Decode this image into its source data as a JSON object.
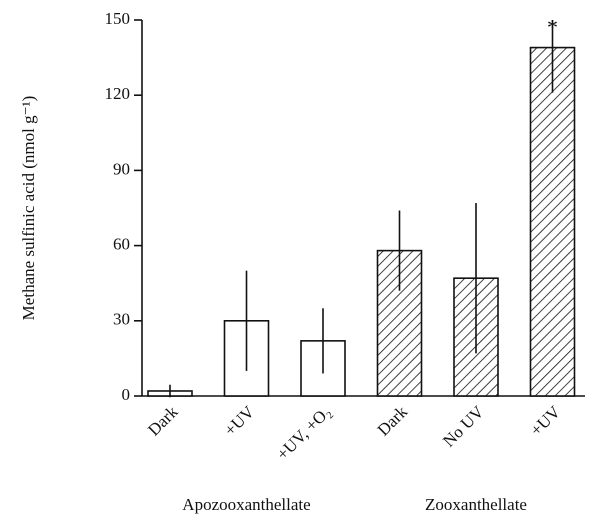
{
  "chart_data": {
    "type": "bar",
    "ylabel": "Methane sulfinic acid (nmol g⁻¹)",
    "ylim": [
      0,
      150
    ],
    "yticks": [
      0,
      30,
      60,
      90,
      120,
      150
    ],
    "series": [
      {
        "name": "Apozooxanthellate",
        "hatch": false,
        "categories": [
          "Dark",
          "+UV",
          "+UV, +O₂"
        ],
        "values": [
          2,
          30,
          22
        ],
        "errors": [
          2.5,
          20,
          13
        ],
        "annotations": [
          null,
          null,
          null
        ]
      },
      {
        "name": "Zooxanthellate",
        "hatch": true,
        "categories": [
          "Dark",
          "No UV",
          "+UV"
        ],
        "values": [
          58,
          47,
          139
        ],
        "errors": [
          16,
          30,
          18
        ],
        "annotations": [
          null,
          null,
          "*"
        ]
      }
    ]
  }
}
